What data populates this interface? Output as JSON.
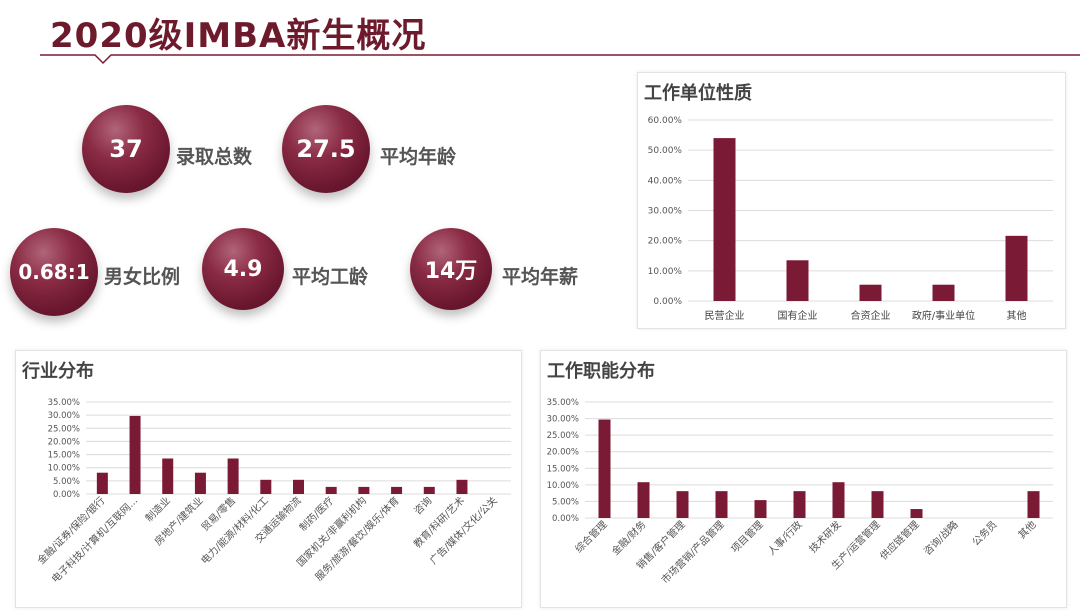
{
  "title": "2020级IMBA新生概况",
  "accent_color": "#7b1a34",
  "stats": [
    {
      "value": "37",
      "label": "录取总数"
    },
    {
      "value": "27.5",
      "label": "平均年龄"
    },
    {
      "value": "0.68:1",
      "label": "男女比例"
    },
    {
      "value": "4.9",
      "label": "平均工龄"
    },
    {
      "value": "14万",
      "label": "平均年薪"
    }
  ],
  "chart_data": [
    {
      "type": "bar",
      "title": "工作单位性质",
      "categories": [
        "民营企业",
        "国有企业",
        "合资企业",
        "政府/事业单位",
        "其他"
      ],
      "values": [
        54.0,
        13.5,
        5.4,
        5.4,
        21.6
      ],
      "yticks": [
        "0.00%",
        "10.00%",
        "20.00%",
        "30.00%",
        "40.00%",
        "50.00%",
        "60.00%"
      ],
      "ylim": [
        0,
        60
      ],
      "grid": true,
      "color": "#7b1a34"
    },
    {
      "type": "bar",
      "title": "行业分布",
      "categories": [
        "金融/证券/保险/银行",
        "电子科技/计算机/互联网...",
        "制造业",
        "房地产/建筑业",
        "贸易/零售",
        "电力/能源/材料/化工",
        "交通运输物流",
        "制药/医疗",
        "国家机关/非赢利机构",
        "服务/旅游/餐饮/娱乐/体育",
        "咨询",
        "教育/科研/艺术",
        "广告/媒体/文化/公关"
      ],
      "values": [
        8.1,
        29.7,
        13.5,
        8.1,
        13.5,
        5.4,
        5.4,
        2.7,
        2.7,
        2.7,
        2.7,
        5.4,
        0
      ],
      "yticks": [
        "0.00%",
        "5.00%",
        "10.00%",
        "15.00%",
        "20.00%",
        "25.00%",
        "30.00%",
        "35.00%"
      ],
      "ylim": [
        0,
        35
      ],
      "grid": true,
      "color": "#7b1a34"
    },
    {
      "type": "bar",
      "title": "工作职能分布",
      "categories": [
        "综合管理",
        "金融/财务",
        "销售/客户管理",
        "市场营销/产品管理",
        "项目管理",
        "人事/行政",
        "技术研发",
        "生产/运营管理",
        "供应链管理",
        "咨询/战略",
        "公务员",
        "其他"
      ],
      "values": [
        29.7,
        10.8,
        8.1,
        8.1,
        5.4,
        8.1,
        10.8,
        8.1,
        2.7,
        0,
        0,
        8.1
      ],
      "yticks": [
        "0.00%",
        "5.00%",
        "10.00%",
        "15.00%",
        "20.00%",
        "25.00%",
        "30.00%",
        "35.00%"
      ],
      "ylim": [
        0,
        35
      ],
      "grid": true,
      "color": "#7b1a34"
    }
  ]
}
